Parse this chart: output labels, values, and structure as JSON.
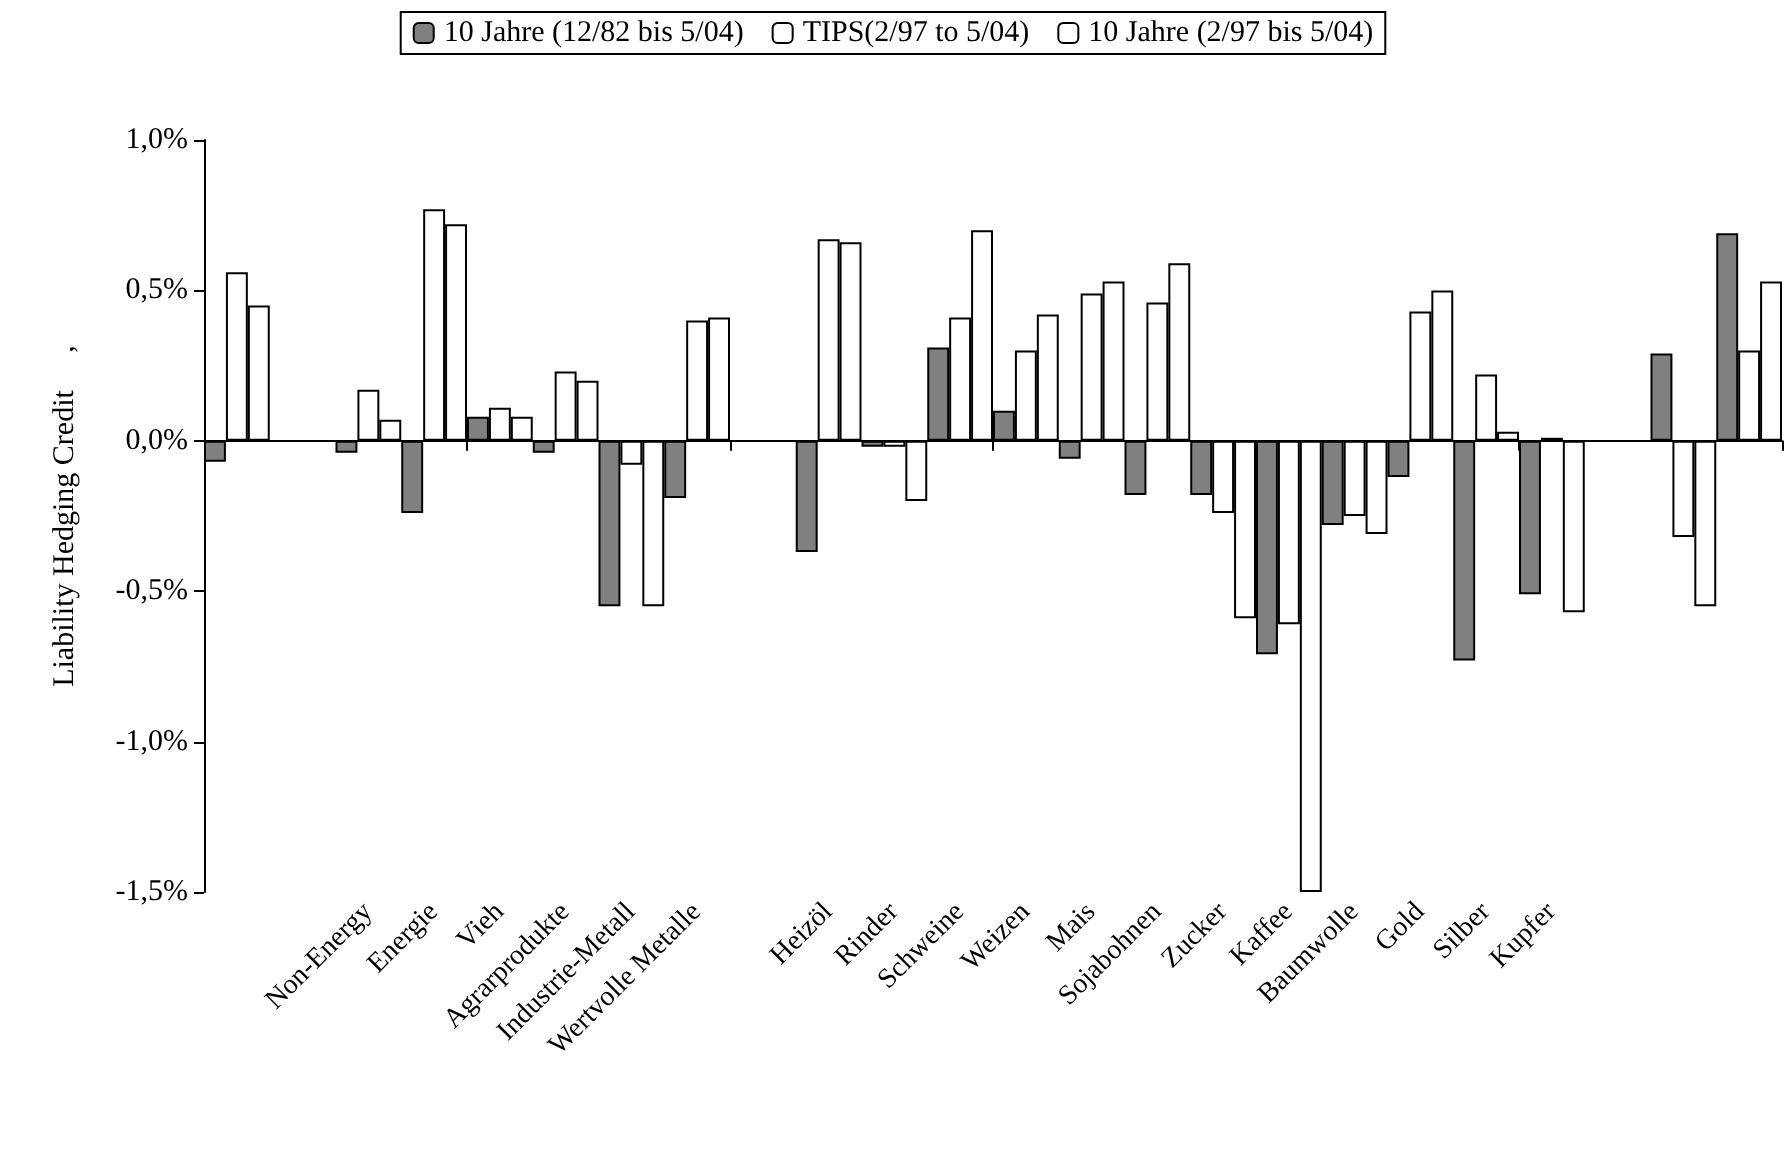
{
  "chart_data": {
    "type": "bar",
    "ylabel": "Liability Hedging Credit     ,",
    "categories": [
      null,
      null,
      "Non-Energy",
      "Energie",
      "Vieh",
      "Agrarprodukte",
      "Industrie-Metall",
      "Wertvolle Metalle",
      null,
      "Heizöl",
      "Rinder",
      "Schweine",
      "Weizen",
      "Mais",
      "Sojabohnen",
      "Zucker",
      "Kaffee",
      "Baumwolle",
      "Gold",
      "Silber",
      "Kupfer",
      null,
      null,
      null
    ],
    "series": [
      {
        "name": "10 Jahre (12/82 bis 5/04)",
        "color": "#808080",
        "values": [
          -0.07,
          null,
          -0.04,
          -0.24,
          0.08,
          -0.04,
          -0.55,
          -0.19,
          null,
          -0.37,
          -0.02,
          0.31,
          0.1,
          -0.06,
          -0.18,
          -0.18,
          -0.71,
          -0.28,
          -0.12,
          -0.73,
          -0.51,
          null,
          0.29,
          0.69
        ]
      },
      {
        "name": "TIPS(2/97 to 5/04)",
        "color": "#ffffff",
        "values": [
          0.56,
          null,
          0.17,
          0.77,
          0.11,
          0.23,
          -0.08,
          0.4,
          null,
          0.67,
          -0.02,
          0.41,
          0.3,
          0.49,
          0.46,
          -0.24,
          -0.61,
          -0.25,
          0.43,
          0.22,
          0.01,
          null,
          -0.32,
          0.3
        ]
      },
      {
        "name": "10 Jahre (2/97 bis 5/04)",
        "color": "#ffffff",
        "values": [
          0.45,
          null,
          0.07,
          0.72,
          0.08,
          0.2,
          -0.55,
          0.41,
          null,
          0.66,
          -0.2,
          0.7,
          0.42,
          0.53,
          0.59,
          -0.59,
          -1.5,
          -0.31,
          0.5,
          0.03,
          -0.57,
          null,
          -0.55,
          0.53
        ]
      }
    ],
    "ylim": [
      -1.5,
      1.0
    ],
    "yticks": [
      {
        "value": -1.5,
        "label": "-1,5%"
      },
      {
        "value": -1.0,
        "label": "-1,0%"
      },
      {
        "value": -0.5,
        "label": "-0,5%"
      },
      {
        "value": 0,
        "label": "0,0%"
      },
      {
        "value": 0.5,
        "label": "0,5%"
      },
      {
        "value": 1.0,
        "label": "1,0%"
      }
    ],
    "legend": "top"
  }
}
